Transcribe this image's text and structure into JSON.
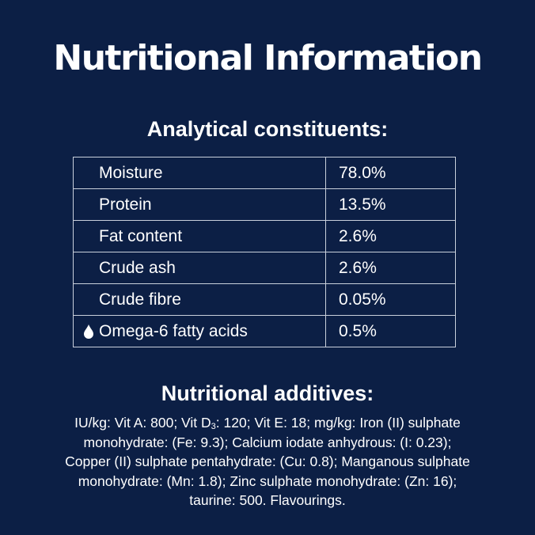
{
  "title": "Nutritional Information",
  "analytical": {
    "heading": "Analytical constituents:",
    "rows": [
      {
        "label": "Moisture",
        "value": "78.0%",
        "icon": ""
      },
      {
        "label": "Protein",
        "value": "13.5%",
        "icon": ""
      },
      {
        "label": "Fat content",
        "value": "2.6%",
        "icon": ""
      },
      {
        "label": "Crude ash",
        "value": "2.6%",
        "icon": ""
      },
      {
        "label": "Crude fibre",
        "value": "0.05%",
        "icon": ""
      },
      {
        "label": "Omega-6 fatty acids",
        "value": "0.5%",
        "icon": "water-drop-icon"
      }
    ]
  },
  "additives": {
    "heading": "Nutritional additives:",
    "line1_a": "IU/kg: Vit A: 800; Vit D",
    "line1_sub": "3",
    "line1_b": ": 120; Vit E: 18; mg/kg: Iron (II) sulphate",
    "line2": "monohydrate: (Fe: 9.3); Calcium iodate anhydrous: (I: 0.23);",
    "line3": "Copper (II) sulphate pentahydrate: (Cu: 0.8); Manganous sulphate",
    "line4": "monohydrate: (Mn: 1.8); Zinc sulphate monohydrate: (Zn: 16);",
    "line5": "taurine: 500. Flavourings."
  },
  "colors": {
    "background": "#0c1f45",
    "text": "#ffffff",
    "border": "#c9d0dc"
  }
}
